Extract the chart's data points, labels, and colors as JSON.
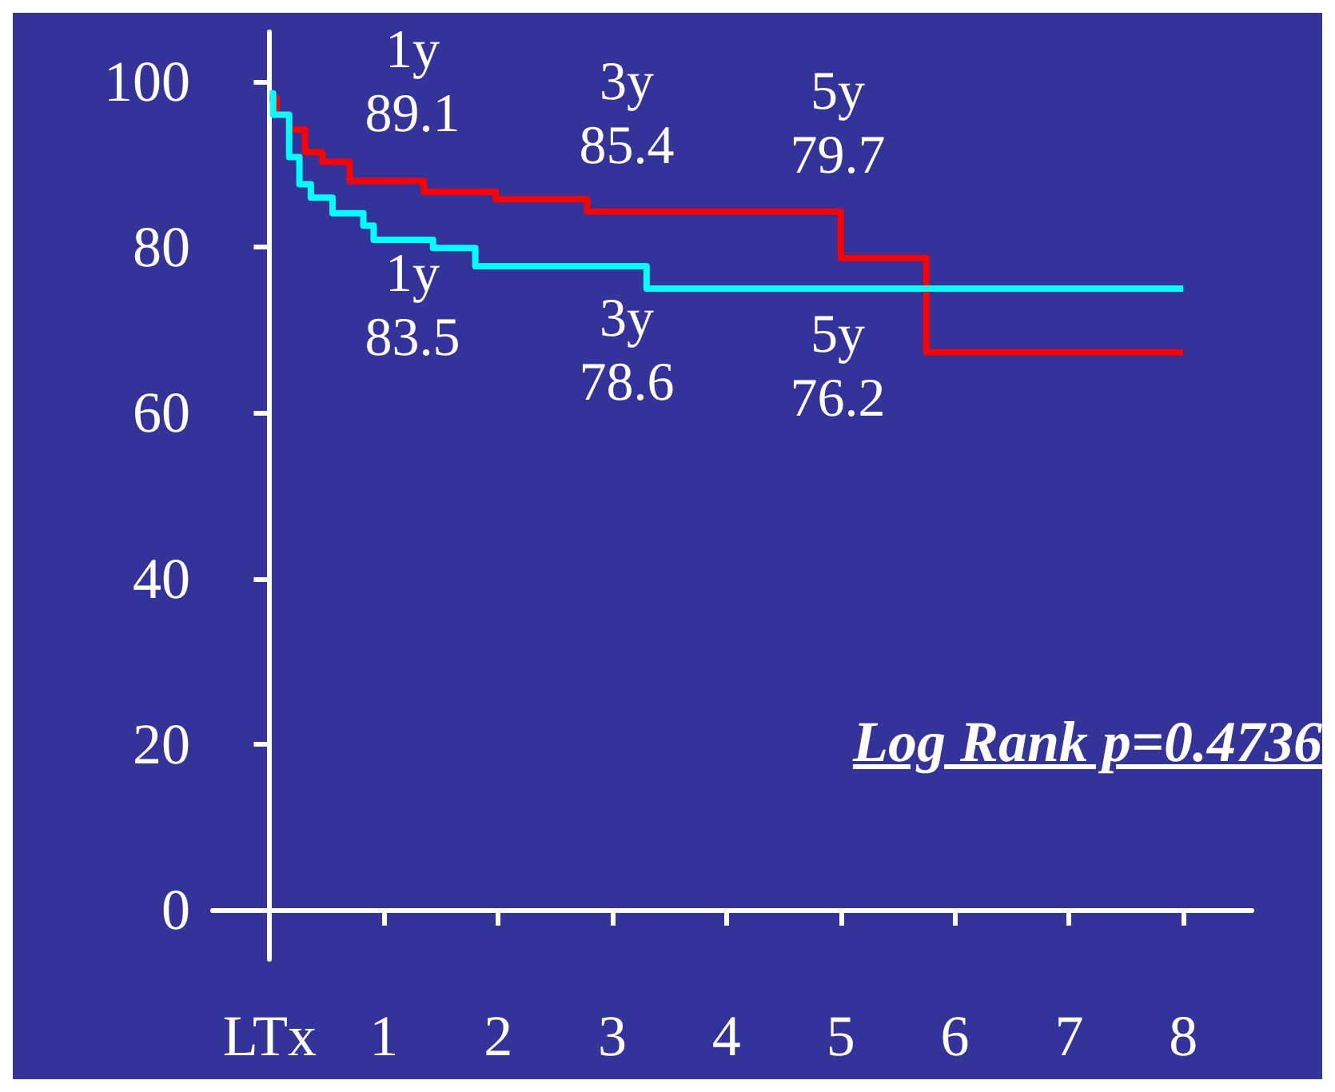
{
  "chart_data": {
    "type": "step",
    "xlim": [
      -0.5,
      8.6
    ],
    "ylim": [
      -6,
      106
    ],
    "xticks": [
      {
        "value": 0,
        "label": "LTx"
      },
      1,
      2,
      3,
      4,
      5,
      6,
      7,
      8
    ],
    "yticks": [
      0,
      20,
      40,
      60,
      80,
      100
    ],
    "grid": false,
    "marker": "none",
    "line_style": "solid",
    "series": [
      {
        "color": "#ff0000",
        "x": [
          0,
          0.06,
          0.17,
          0.31,
          0.46,
          0.7,
          1.35,
          1.98,
          2.78,
          5.0,
          5.75,
          8.0
        ],
        "values": [
          98,
          96,
          94.2,
          91.5,
          90.3,
          88,
          86.7,
          85.8,
          84.3,
          78.7,
          67.3,
          67.3
        ]
      },
      {
        "color": "#00ffff",
        "x": [
          0,
          0.03,
          0.17,
          0.26,
          0.36,
          0.55,
          0.82,
          0.91,
          1.43,
          1.8,
          3.3,
          8.0
        ],
        "values": [
          98.6,
          96,
          90.9,
          87.6,
          86,
          84.1,
          82.6,
          80.9,
          79.9,
          77.7,
          75,
          75
        ]
      }
    ],
    "annotations": [
      "1y\n89.1",
      "3y\n85.4",
      "5y\n79.7",
      "1y\n83.5",
      "3y\n78.6",
      "5y\n76.2",
      "Log Rank p=0.4736"
    ]
  }
}
